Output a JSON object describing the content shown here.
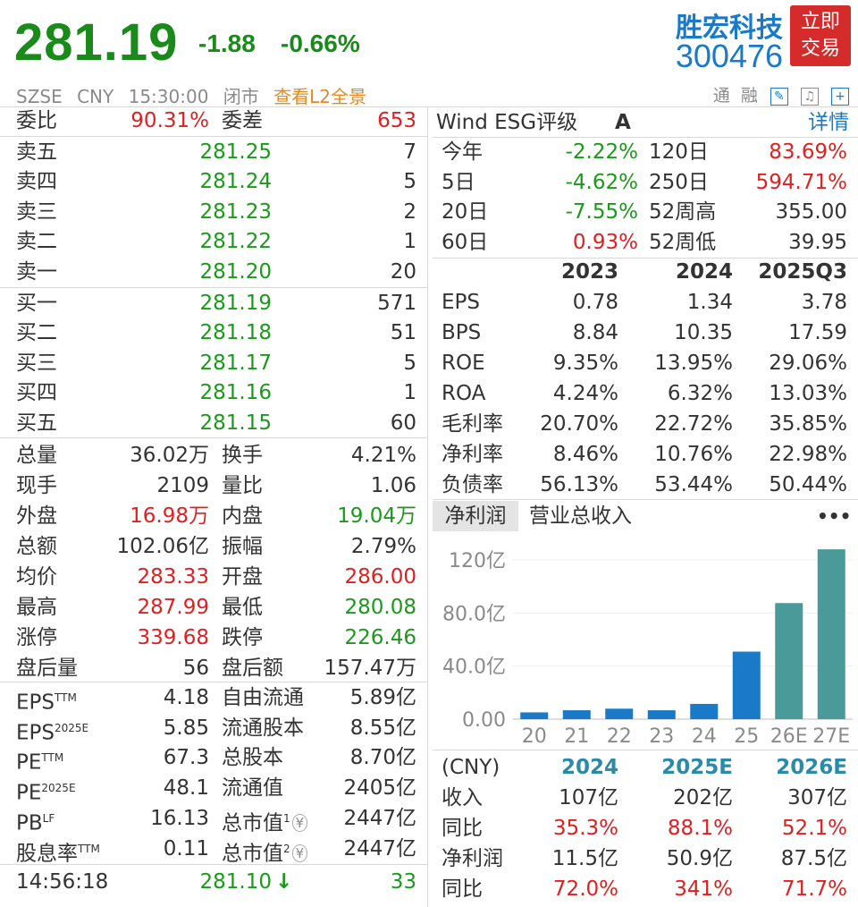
{
  "header": {
    "price": "281.19",
    "change": "-1.88",
    "change_pct": "-0.66%",
    "stock_name": "胜宏科技",
    "stock_code": "300476",
    "trade_btn_line1": "立即",
    "trade_btn_line2": "交易",
    "exchange": "SZSE",
    "currency": "CNY",
    "time": "15:30:00",
    "status": "闭市",
    "l2_link": "查看L2全景",
    "tong_label": "通",
    "rong_label": "融"
  },
  "order_book": {
    "weibi_label": "委比",
    "weibi_value": "90.31%",
    "weicha_label": "委差",
    "weicha_value": "653",
    "asks": [
      {
        "label": "卖五",
        "price": "281.25",
        "vol": "7"
      },
      {
        "label": "卖四",
        "price": "281.24",
        "vol": "5"
      },
      {
        "label": "卖三",
        "price": "281.23",
        "vol": "2"
      },
      {
        "label": "卖二",
        "price": "281.22",
        "vol": "1"
      },
      {
        "label": "卖一",
        "price": "281.20",
        "vol": "20"
      }
    ],
    "bids": [
      {
        "label": "买一",
        "price": "281.19",
        "vol": "571"
      },
      {
        "label": "买二",
        "price": "281.18",
        "vol": "51"
      },
      {
        "label": "买三",
        "price": "281.17",
        "vol": "5"
      },
      {
        "label": "买四",
        "price": "281.16",
        "vol": "1"
      },
      {
        "label": "买五",
        "price": "281.15",
        "vol": "60"
      }
    ]
  },
  "stats": [
    {
      "l1": "总量",
      "v1": "36.02万",
      "c1": "dark",
      "l2": "换手",
      "v2": "4.21%",
      "c2": "dark"
    },
    {
      "l1": "现手",
      "v1": "2109",
      "c1": "dark",
      "l2": "量比",
      "v2": "1.06",
      "c2": "dark"
    },
    {
      "l1": "外盘",
      "v1": "16.98万",
      "c1": "red",
      "l2": "内盘",
      "v2": "19.04万",
      "c2": "green"
    },
    {
      "l1": "总额",
      "v1": "102.06亿",
      "c1": "dark",
      "l2": "振幅",
      "v2": "2.79%",
      "c2": "dark"
    },
    {
      "l1": "均价",
      "v1": "283.33",
      "c1": "red",
      "l2": "开盘",
      "v2": "286.00",
      "c2": "red"
    },
    {
      "l1": "最高",
      "v1": "287.99",
      "c1": "red",
      "l2": "最低",
      "v2": "280.08",
      "c2": "green"
    },
    {
      "l1": "涨停",
      "v1": "339.68",
      "c1": "red",
      "l2": "跌停",
      "v2": "226.46",
      "c2": "green"
    },
    {
      "l1": "盘后量",
      "v1": "56",
      "c1": "dark",
      "l2": "盘后额",
      "v2": "157.47万",
      "c2": "dark"
    }
  ],
  "valuation": [
    {
      "l1": "EPS",
      "s1": "TTM",
      "v1": "4.18",
      "l2": "自由流通",
      "s2": "",
      "v2": "5.89亿"
    },
    {
      "l1": "EPS",
      "s1": "2025E",
      "v1": "5.85",
      "l2": "流通股本",
      "s2": "",
      "v2": "8.55亿"
    },
    {
      "l1": "PE",
      "s1": "TTM",
      "v1": "67.3",
      "l2": "总股本",
      "s2": "",
      "v2": "8.70亿"
    },
    {
      "l1": "PE",
      "s1": "2025E",
      "v1": "48.1",
      "l2": "流通值",
      "s2": "",
      "v2": "2405亿"
    },
    {
      "l1": "PB",
      "s1": "LF",
      "v1": "16.13",
      "l2": "总市值",
      "s2": "1",
      "v2": "2447亿"
    },
    {
      "l1": "股息率",
      "s1": "TTM",
      "v1": "0.11",
      "l2": "总市值",
      "s2": "2",
      "v2": "2447亿"
    }
  ],
  "yen_symbol": "¥",
  "ticks": [
    {
      "time": "14:56:18",
      "price": "281.10",
      "vol": "33"
    }
  ],
  "esg": {
    "label": "Wind ESG评级",
    "grade": "A",
    "detail": "详情"
  },
  "returns": [
    {
      "l1": "今年",
      "v1": "-2.22%",
      "c1": "green",
      "l2": "120日",
      "v2": "83.69%",
      "c2": "red"
    },
    {
      "l1": "5日",
      "v1": "-4.62%",
      "c1": "green",
      "l2": "250日",
      "v2": "594.71%",
      "c2": "red"
    },
    {
      "l1": "20日",
      "v1": "-7.55%",
      "c1": "green",
      "l2": "52周高",
      "v2": "355.00",
      "c2": "dark"
    },
    {
      "l1": "60日",
      "v1": "0.93%",
      "c1": "red",
      "l2": "52周低",
      "v2": "39.95",
      "c2": "dark"
    }
  ],
  "fin_headers": [
    "2023",
    "2024",
    "2025Q3"
  ],
  "fin_rows": [
    {
      "label": "EPS",
      "vals": [
        "0.78",
        "1.34",
        "3.78"
      ]
    },
    {
      "label": "BPS",
      "vals": [
        "8.84",
        "10.35",
        "17.59"
      ]
    },
    {
      "label": "ROE",
      "vals": [
        "9.35%",
        "13.95%",
        "29.06%"
      ]
    },
    {
      "label": "ROA",
      "vals": [
        "4.24%",
        "6.32%",
        "13.03%"
      ]
    },
    {
      "label": "毛利率",
      "vals": [
        "20.70%",
        "22.72%",
        "35.85%"
      ]
    },
    {
      "label": "净利率",
      "vals": [
        "8.46%",
        "10.76%",
        "22.98%"
      ]
    },
    {
      "label": "负债率",
      "vals": [
        "56.13%",
        "53.44%",
        "50.44%"
      ]
    }
  ],
  "chart_tabs": {
    "active": "净利润",
    "other": "营业总收入",
    "more": "•••"
  },
  "chart_data": {
    "type": "bar",
    "categories": [
      "20",
      "21",
      "22",
      "23",
      "24",
      "25",
      "26E",
      "27E"
    ],
    "values": [
      5.1,
      6.7,
      7.9,
      6.7,
      11.5,
      50.9,
      87.5,
      128
    ],
    "yticks": [
      "0.00",
      "40.0亿",
      "80.0亿",
      "120亿"
    ],
    "ylim": [
      0,
      130
    ],
    "colors": [
      "#1a7ac8",
      "#1a7ac8",
      "#1a7ac8",
      "#1a7ac8",
      "#1a7ac8",
      "#1a7ac8",
      "#4a9a9a",
      "#4a9a9a"
    ]
  },
  "forecast": {
    "headers": [
      "(CNY)",
      "2024",
      "2025E",
      "2026E"
    ],
    "rows": [
      {
        "label": "收入",
        "vals": [
          "107亿",
          "202亿",
          "307亿"
        ],
        "color": "dark"
      },
      {
        "label": "同比",
        "vals": [
          "35.3%",
          "88.1%",
          "52.1%"
        ],
        "color": "red"
      },
      {
        "label": "净利润",
        "vals": [
          "11.5亿",
          "50.9亿",
          "87.5亿"
        ],
        "color": "dark"
      },
      {
        "label": "同比",
        "vals": [
          "72.0%",
          "341%",
          "71.7%"
        ],
        "color": "red"
      }
    ]
  }
}
